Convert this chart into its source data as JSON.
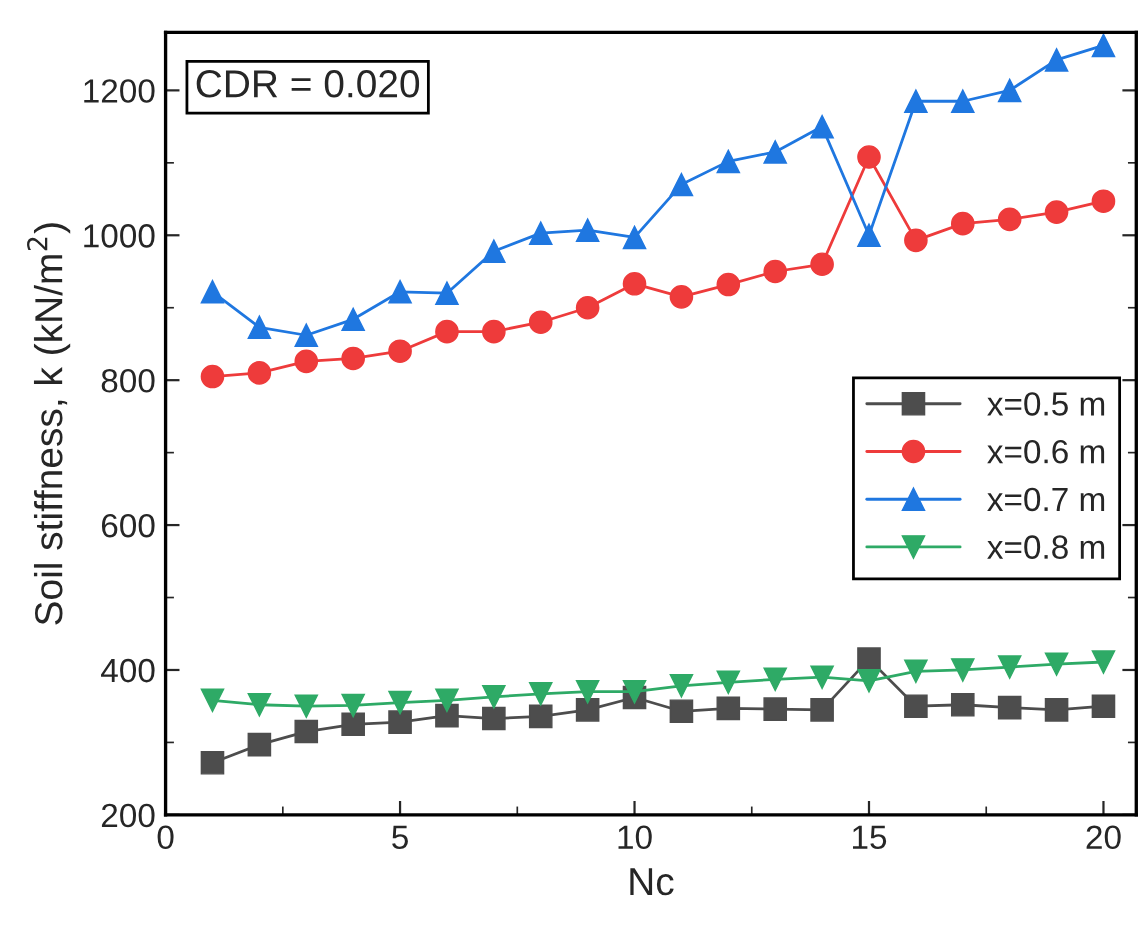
{
  "chart_data": {
    "type": "line",
    "xlabel": "Nc",
    "ylabel": "Soil stiffness, k (kN/m$^{2}$)",
    "annotations": [
      "CDR = 0.020"
    ],
    "x": [
      1,
      2,
      3,
      4,
      5,
      6,
      7,
      8,
      9,
      10,
      11,
      12,
      13,
      14,
      15,
      16,
      17,
      18,
      19,
      20
    ],
    "series": [
      {
        "name": "x=0.5 m",
        "color": "#4d4d4d",
        "marker": "square",
        "values": [
          272,
          297,
          315,
          325,
          328,
          337,
          333,
          336,
          345,
          362,
          343,
          347,
          346,
          345,
          415,
          350,
          352,
          348,
          345,
          350
        ]
      },
      {
        "name": "x=0.6 m",
        "color": "#ee3b3b",
        "marker": "circle",
        "values": [
          805,
          810,
          826,
          830,
          840,
          867,
          867,
          880,
          900,
          933,
          915,
          932,
          950,
          960,
          1108,
          993,
          1016,
          1022,
          1032,
          1047
        ]
      },
      {
        "name": "x=0.7 m",
        "color": "#1f77e0",
        "marker": "triangle",
        "values": [
          922,
          873,
          862,
          884,
          922,
          920,
          978,
          1003,
          1007,
          997,
          1070,
          1102,
          1115,
          1150,
          1000,
          1185,
          1185,
          1200,
          1242,
          1262
        ]
      },
      {
        "name": "x=0.8 m",
        "color": "#2eaa66",
        "marker": "triangle_down",
        "values": [
          358,
          352,
          350,
          351,
          355,
          358,
          363,
          367,
          370,
          370,
          378,
          383,
          387,
          390,
          385,
          398,
          400,
          404,
          408,
          411
        ]
      }
    ],
    "xlim": [
      0,
      20.7
    ],
    "xticks": [
      0,
      5,
      10,
      15,
      20
    ],
    "ylim": [
      200,
      1280
    ],
    "yticks": [
      200,
      400,
      600,
      800,
      1000,
      1200
    ],
    "grid": false,
    "legend": "right"
  }
}
